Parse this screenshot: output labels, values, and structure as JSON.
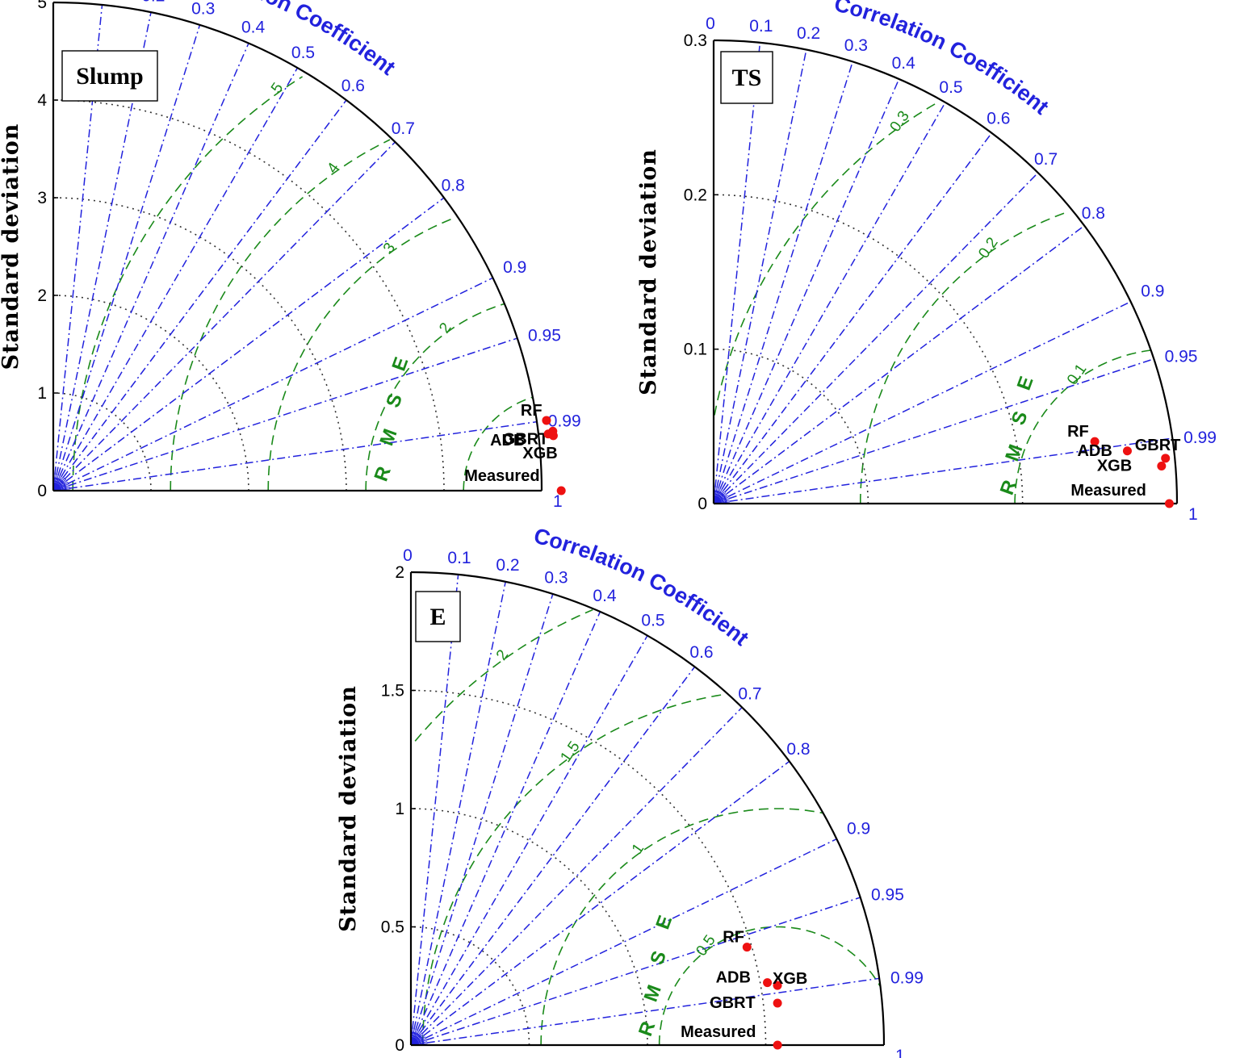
{
  "figure": {
    "ylabel": "Standard deviation",
    "cc_label": "Correlation Coefficient",
    "rmse_label": "RMSE",
    "correlation_ticks": [
      "0",
      "0.1",
      "0.2",
      "0.3",
      "0.4",
      "0.5",
      "0.6",
      "0.7",
      "0.8",
      "0.9",
      "0.95",
      "0.99",
      "1"
    ],
    "colors": {
      "corr": "#2222dd",
      "rmse": "#1a8a1a",
      "point": "#ee1111",
      "std_grid": "#000000"
    }
  },
  "chart_data": [
    {
      "type": "taylor",
      "title": "Slump",
      "ylabel": "Standard deviation",
      "std_max": 5,
      "std_ticks": [
        "0",
        "1",
        "2",
        "3",
        "4",
        "5"
      ],
      "std_arcs": [
        1,
        2,
        3,
        4
      ],
      "ref_std": 5.2,
      "rmse_arcs": [
        1,
        2,
        3,
        4,
        5
      ],
      "rmse_labels": [
        "2",
        "3",
        "4",
        "5"
      ],
      "points": [
        {
          "name": "RF",
          "corr": 0.99,
          "std": 5.1
        },
        {
          "name": "GBRT",
          "corr": 0.993,
          "std": 5.15
        },
        {
          "name": "ADB",
          "corr": 0.9935,
          "std": 5.1
        },
        {
          "name": "XGB",
          "corr": 0.994,
          "std": 5.15
        },
        {
          "name": "Measured",
          "corr": 1,
          "std": 5.2
        }
      ]
    },
    {
      "type": "taylor",
      "title": "TS",
      "ylabel": "Standard deviation",
      "std_max": 0.3,
      "std_ticks": [
        "0",
        "0.1",
        "0.2",
        "0.3"
      ],
      "std_arcs": [
        0.1,
        0.2
      ],
      "ref_std": 0.295,
      "rmse_arcs": [
        0.1,
        0.2,
        0.3
      ],
      "rmse_labels": [
        "0.1",
        "0.2",
        "0.3"
      ],
      "points": [
        {
          "name": "RF",
          "corr": 0.987,
          "std": 0.25
        },
        {
          "name": "ADB",
          "corr": 0.992,
          "std": 0.27
        },
        {
          "name": "GBRT",
          "corr": 0.995,
          "std": 0.294
        },
        {
          "name": "XGB",
          "corr": 0.9965,
          "std": 0.291
        },
        {
          "name": "Measured",
          "corr": 1,
          "std": 0.295
        }
      ]
    },
    {
      "type": "taylor",
      "title": "E",
      "ylabel": "Standard deviation",
      "std_max": 2,
      "std_ticks": [
        "0",
        "0.5",
        "1",
        "1.5",
        "2"
      ],
      "std_arcs": [
        0.5,
        1,
        1.5
      ],
      "ref_std": 1.55,
      "rmse_arcs": [
        0.5,
        1,
        1.5,
        2
      ],
      "rmse_labels": [
        "0.5",
        "1",
        "1.5",
        "2"
      ],
      "points": [
        {
          "name": "RF",
          "corr": 0.96,
          "std": 1.48
        },
        {
          "name": "ADB",
          "corr": 0.985,
          "std": 1.53
        },
        {
          "name": "XGB",
          "corr": 0.987,
          "std": 1.57
        },
        {
          "name": "GBRT",
          "corr": 0.9935,
          "std": 1.56
        },
        {
          "name": "Measured",
          "corr": 1,
          "std": 1.55
        }
      ]
    }
  ]
}
